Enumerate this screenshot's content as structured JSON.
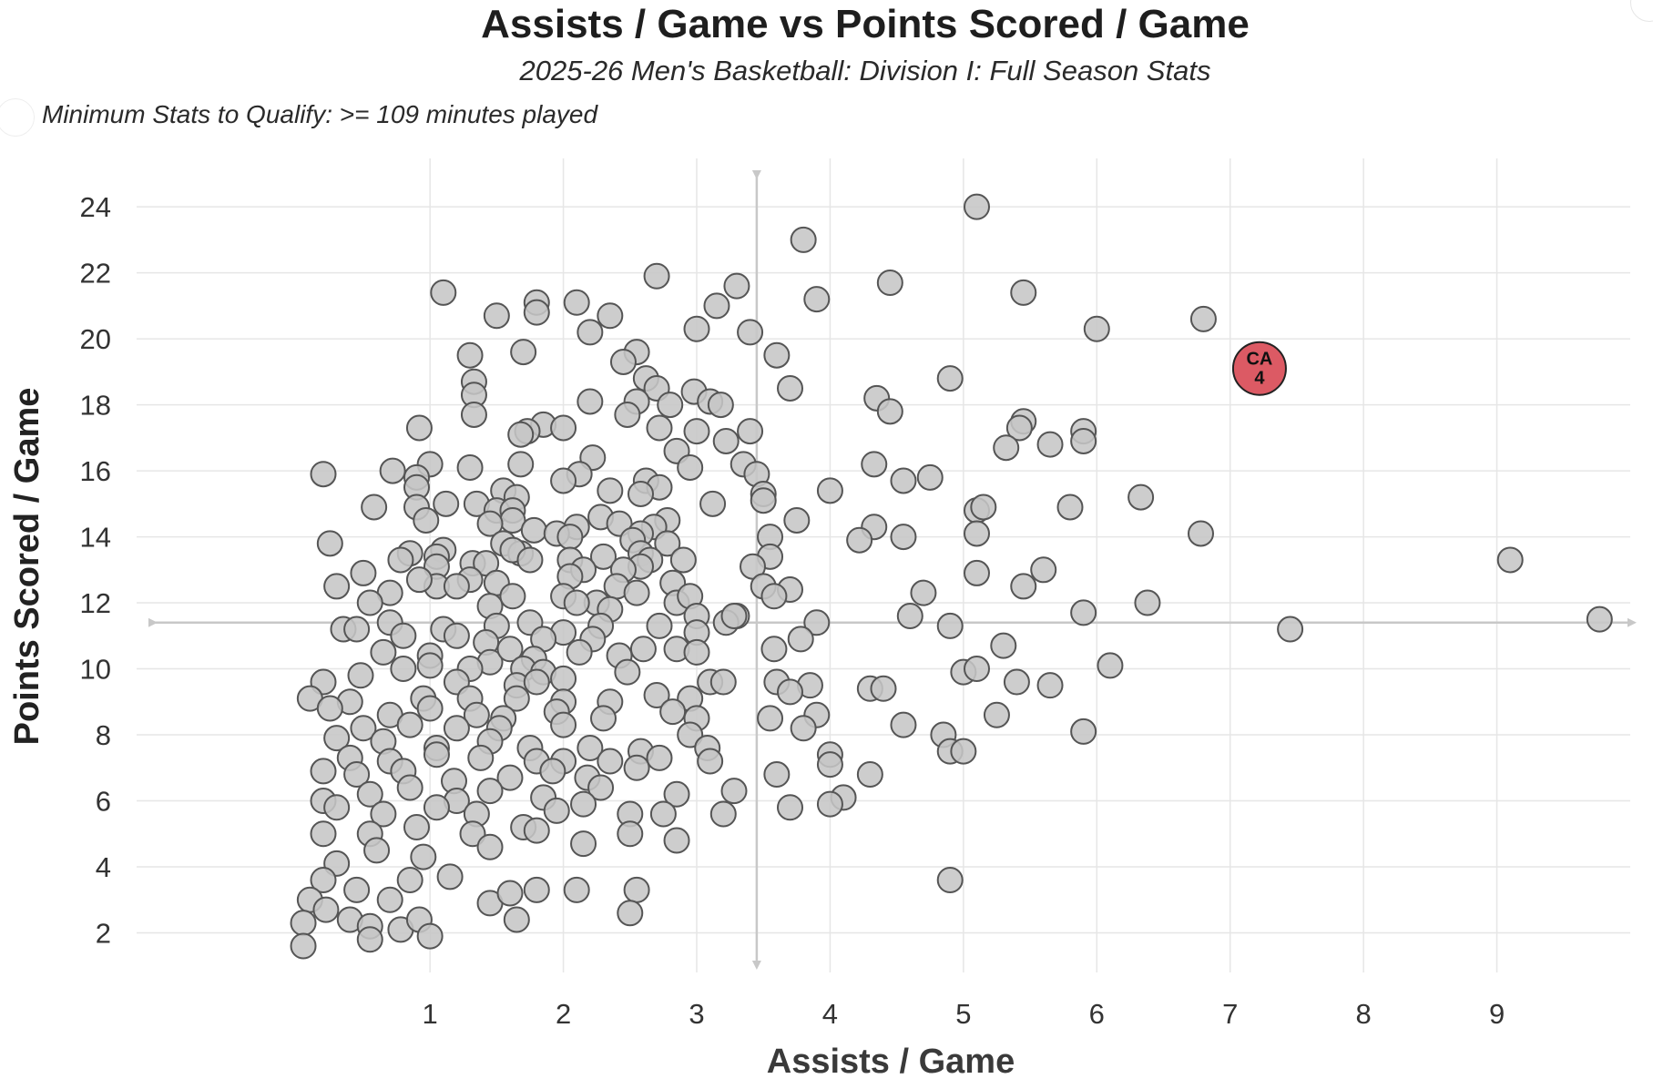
{
  "chart_data": {
    "type": "scatter",
    "title": "Assists / Game vs Points Scored / Game",
    "subtitle": "2025-26 Men's Basketball: Division I: Full Season Stats",
    "note": "Minimum Stats to Qualify: >= 109 minutes played",
    "xlabel": "Assists / Game",
    "ylabel": "Points Scored / Game",
    "xlim": [
      -1.2,
      10.0
    ],
    "ylim": [
      0.8,
      25.3
    ],
    "x_ticks": [
      1,
      2,
      3,
      4,
      5,
      6,
      7,
      8,
      9
    ],
    "y_ticks": [
      2,
      4,
      6,
      8,
      10,
      12,
      14,
      16,
      18,
      20,
      22,
      24
    ],
    "reference_lines": {
      "x_mean": 3.45,
      "y_mean": 11.4
    },
    "colors": {
      "point_fill": "#c6c6c6",
      "point_stroke": "#555555",
      "highlight_fill": "#dc5a64",
      "grid": "#e6e6e6",
      "reference": "#c8c8c8"
    },
    "highlight": {
      "label_line1": "CA",
      "label_line2": "4",
      "x": 7.22,
      "y": 19.1
    },
    "points": [
      [
        5.1,
        24.0
      ],
      [
        3.8,
        23.0
      ],
      [
        2.7,
        21.9
      ],
      [
        3.3,
        21.6
      ],
      [
        4.45,
        21.7
      ],
      [
        1.1,
        21.4
      ],
      [
        5.45,
        21.4
      ],
      [
        1.8,
        21.1
      ],
      [
        2.1,
        21.1
      ],
      [
        3.9,
        21.2
      ],
      [
        3.15,
        21.0
      ],
      [
        1.5,
        20.7
      ],
      [
        1.8,
        20.8
      ],
      [
        2.35,
        20.7
      ],
      [
        6.8,
        20.6
      ],
      [
        2.2,
        20.2
      ],
      [
        3.0,
        20.3
      ],
      [
        3.4,
        20.2
      ],
      [
        6.0,
        20.3
      ],
      [
        1.3,
        19.5
      ],
      [
        1.7,
        19.6
      ],
      [
        2.55,
        19.6
      ],
      [
        3.6,
        19.5
      ],
      [
        2.45,
        19.3
      ],
      [
        4.9,
        18.8
      ],
      [
        1.33,
        18.7
      ],
      [
        1.33,
        18.3
      ],
      [
        2.62,
        18.8
      ],
      [
        2.7,
        18.5
      ],
      [
        3.7,
        18.5
      ],
      [
        2.2,
        18.1
      ],
      [
        2.98,
        18.4
      ],
      [
        3.1,
        18.1
      ],
      [
        4.35,
        18.2
      ],
      [
        3.18,
        18.0
      ],
      [
        2.55,
        18.1
      ],
      [
        2.8,
        18.0
      ],
      [
        4.45,
        17.8
      ],
      [
        1.33,
        17.7
      ],
      [
        2.48,
        17.7
      ],
      [
        5.45,
        17.5
      ],
      [
        1.85,
        17.4
      ],
      [
        2.0,
        17.3
      ],
      [
        5.42,
        17.3
      ],
      [
        0.92,
        17.3
      ],
      [
        1.73,
        17.2
      ],
      [
        2.72,
        17.3
      ],
      [
        3.4,
        17.2
      ],
      [
        5.9,
        17.2
      ],
      [
        1.68,
        17.1
      ],
      [
        3.0,
        17.2
      ],
      [
        5.9,
        16.9
      ],
      [
        5.32,
        16.7
      ],
      [
        5.65,
        16.8
      ],
      [
        3.22,
        16.9
      ],
      [
        2.85,
        16.6
      ],
      [
        2.22,
        16.4
      ],
      [
        3.35,
        16.2
      ],
      [
        4.33,
        16.2
      ],
      [
        1.3,
        16.1
      ],
      [
        0.72,
        16.0
      ],
      [
        1.0,
        16.2
      ],
      [
        1.68,
        16.2
      ],
      [
        0.2,
        15.9
      ],
      [
        0.9,
        15.8
      ],
      [
        2.12,
        15.9
      ],
      [
        2.0,
        15.7
      ],
      [
        2.95,
        16.1
      ],
      [
        3.45,
        15.9
      ],
      [
        4.55,
        15.7
      ],
      [
        4.75,
        15.8
      ],
      [
        2.62,
        15.7
      ],
      [
        0.9,
        15.5
      ],
      [
        2.35,
        15.4
      ],
      [
        4.0,
        15.4
      ],
      [
        2.72,
        15.5
      ],
      [
        3.5,
        15.3
      ],
      [
        2.58,
        15.3
      ],
      [
        1.55,
        15.4
      ],
      [
        1.65,
        15.2
      ],
      [
        1.12,
        15.0
      ],
      [
        0.58,
        14.9
      ],
      [
        0.9,
        14.9
      ],
      [
        3.12,
        15.0
      ],
      [
        3.5,
        15.1
      ],
      [
        6.33,
        15.2
      ],
      [
        1.35,
        15.0
      ],
      [
        1.5,
        14.8
      ],
      [
        1.62,
        14.8
      ],
      [
        5.8,
        14.9
      ],
      [
        5.1,
        14.8
      ],
      [
        5.15,
        14.9
      ],
      [
        0.97,
        14.5
      ],
      [
        2.28,
        14.6
      ],
      [
        1.62,
        14.5
      ],
      [
        2.78,
        14.5
      ],
      [
        3.75,
        14.5
      ],
      [
        1.45,
        14.4
      ],
      [
        2.1,
        14.3
      ],
      [
        2.42,
        14.4
      ],
      [
        2.68,
        14.3
      ],
      [
        4.33,
        14.3
      ],
      [
        1.78,
        14.2
      ],
      [
        1.95,
        14.1
      ],
      [
        2.05,
        14.0
      ],
      [
        2.58,
        14.1
      ],
      [
        3.55,
        14.0
      ],
      [
        4.55,
        14.0
      ],
      [
        5.1,
        14.1
      ],
      [
        6.78,
        14.1
      ],
      [
        0.25,
        13.8
      ],
      [
        1.1,
        13.6
      ],
      [
        1.55,
        13.8
      ],
      [
        2.52,
        13.9
      ],
      [
        2.78,
        13.8
      ],
      [
        1.05,
        13.4
      ],
      [
        1.68,
        13.5
      ],
      [
        0.85,
        13.5
      ],
      [
        1.32,
        13.2
      ],
      [
        2.3,
        13.4
      ],
      [
        1.62,
        13.6
      ],
      [
        4.22,
        13.9
      ],
      [
        2.58,
        13.5
      ],
      [
        2.9,
        13.3
      ],
      [
        0.78,
        13.3
      ],
      [
        1.05,
        13.1
      ],
      [
        2.05,
        13.3
      ],
      [
        2.65,
        13.3
      ],
      [
        3.55,
        13.4
      ],
      [
        1.75,
        13.3
      ],
      [
        2.58,
        13.1
      ],
      [
        3.42,
        13.1
      ],
      [
        1.42,
        13.2
      ],
      [
        9.1,
        13.3
      ],
      [
        0.5,
        12.9
      ],
      [
        1.3,
        12.7
      ],
      [
        1.5,
        12.6
      ],
      [
        2.15,
        13.0
      ],
      [
        2.45,
        13.0
      ],
      [
        2.05,
        12.8
      ],
      [
        5.1,
        12.9
      ],
      [
        5.6,
        13.0
      ],
      [
        0.3,
        12.5
      ],
      [
        1.05,
        12.5
      ],
      [
        0.92,
        12.7
      ],
      [
        2.4,
        12.5
      ],
      [
        3.5,
        12.5
      ],
      [
        3.7,
        12.4
      ],
      [
        2.82,
        12.6
      ],
      [
        5.45,
        12.5
      ],
      [
        0.7,
        12.3
      ],
      [
        1.2,
        12.5
      ],
      [
        2.0,
        12.2
      ],
      [
        2.25,
        12.0
      ],
      [
        2.55,
        12.3
      ],
      [
        3.58,
        12.2
      ],
      [
        4.7,
        12.3
      ],
      [
        0.55,
        12.0
      ],
      [
        1.62,
        12.2
      ],
      [
        2.1,
        12.0
      ],
      [
        2.85,
        12.0
      ],
      [
        2.95,
        12.2
      ],
      [
        1.45,
        11.9
      ],
      [
        2.35,
        11.8
      ],
      [
        3.0,
        11.6
      ],
      [
        3.3,
        11.6
      ],
      [
        3.9,
        11.4
      ],
      [
        4.6,
        11.6
      ],
      [
        5.9,
        11.7
      ],
      [
        6.38,
        12.0
      ],
      [
        0.35,
        11.2
      ],
      [
        0.7,
        11.4
      ],
      [
        1.1,
        11.2
      ],
      [
        1.5,
        11.3
      ],
      [
        1.75,
        11.4
      ],
      [
        2.0,
        11.1
      ],
      [
        2.28,
        11.3
      ],
      [
        2.72,
        11.3
      ],
      [
        3.22,
        11.4
      ],
      [
        3.28,
        11.6
      ],
      [
        4.9,
        11.3
      ],
      [
        0.45,
        11.2
      ],
      [
        0.8,
        11.0
      ],
      [
        1.2,
        11.0
      ],
      [
        1.42,
        10.8
      ],
      [
        1.85,
        10.9
      ],
      [
        2.22,
        10.9
      ],
      [
        2.6,
        10.6
      ],
      [
        3.0,
        11.1
      ],
      [
        3.78,
        10.9
      ],
      [
        5.3,
        10.7
      ],
      [
        7.45,
        11.2
      ],
      [
        9.77,
        11.5
      ],
      [
        0.65,
        10.5
      ],
      [
        1.0,
        10.4
      ],
      [
        1.45,
        10.2
      ],
      [
        1.6,
        10.6
      ],
      [
        1.78,
        10.3
      ],
      [
        2.12,
        10.5
      ],
      [
        2.42,
        10.4
      ],
      [
        2.85,
        10.6
      ],
      [
        3.0,
        10.5
      ],
      [
        3.58,
        10.6
      ],
      [
        1.0,
        10.1
      ],
      [
        1.3,
        10.0
      ],
      [
        1.7,
        10.0
      ],
      [
        1.85,
        9.9
      ],
      [
        2.0,
        9.7
      ],
      [
        2.48,
        9.9
      ],
      [
        5.0,
        9.9
      ],
      [
        5.1,
        10.0
      ],
      [
        6.1,
        10.1
      ],
      [
        0.2,
        9.6
      ],
      [
        0.48,
        9.8
      ],
      [
        0.8,
        10.0
      ],
      [
        1.2,
        9.6
      ],
      [
        1.65,
        9.5
      ],
      [
        1.8,
        9.6
      ],
      [
        3.1,
        9.6
      ],
      [
        3.2,
        9.6
      ],
      [
        3.6,
        9.6
      ],
      [
        3.85,
        9.5
      ],
      [
        4.3,
        9.4
      ],
      [
        4.4,
        9.4
      ],
      [
        5.4,
        9.6
      ],
      [
        5.65,
        9.5
      ],
      [
        0.1,
        9.1
      ],
      [
        0.4,
        9.0
      ],
      [
        0.95,
        9.1
      ],
      [
        1.3,
        9.1
      ],
      [
        1.65,
        9.1
      ],
      [
        2.0,
        9.0
      ],
      [
        2.35,
        9.0
      ],
      [
        2.7,
        9.2
      ],
      [
        2.95,
        9.1
      ],
      [
        3.7,
        9.3
      ],
      [
        0.25,
        8.8
      ],
      [
        0.7,
        8.6
      ],
      [
        1.0,
        8.8
      ],
      [
        1.35,
        8.6
      ],
      [
        1.55,
        8.5
      ],
      [
        1.95,
        8.7
      ],
      [
        2.3,
        8.5
      ],
      [
        2.82,
        8.7
      ],
      [
        3.0,
        8.5
      ],
      [
        3.55,
        8.5
      ],
      [
        3.9,
        8.6
      ],
      [
        5.25,
        8.6
      ],
      [
        0.5,
        8.2
      ],
      [
        0.85,
        8.3
      ],
      [
        1.2,
        8.2
      ],
      [
        1.52,
        8.2
      ],
      [
        2.0,
        8.3
      ],
      [
        2.95,
        8.0
      ],
      [
        3.8,
        8.2
      ],
      [
        4.55,
        8.3
      ],
      [
        4.85,
        8.0
      ],
      [
        5.9,
        8.1
      ],
      [
        0.3,
        7.9
      ],
      [
        0.65,
        7.8
      ],
      [
        1.05,
        7.6
      ],
      [
        1.45,
        7.8
      ],
      [
        1.75,
        7.6
      ],
      [
        2.2,
        7.6
      ],
      [
        2.58,
        7.5
      ],
      [
        3.08,
        7.6
      ],
      [
        0.4,
        7.3
      ],
      [
        0.7,
        7.2
      ],
      [
        1.05,
        7.4
      ],
      [
        1.38,
        7.3
      ],
      [
        1.8,
        7.2
      ],
      [
        2.0,
        7.2
      ],
      [
        2.35,
        7.2
      ],
      [
        2.72,
        7.3
      ],
      [
        3.1,
        7.2
      ],
      [
        4.0,
        7.4
      ],
      [
        4.9,
        7.5
      ],
      [
        5.0,
        7.5
      ],
      [
        0.2,
        6.9
      ],
      [
        0.45,
        6.8
      ],
      [
        0.8,
        6.9
      ],
      [
        1.18,
        6.6
      ],
      [
        1.6,
        6.7
      ],
      [
        1.92,
        6.9
      ],
      [
        2.18,
        6.7
      ],
      [
        2.55,
        7.0
      ],
      [
        3.6,
        6.8
      ],
      [
        4.0,
        7.1
      ],
      [
        4.3,
        6.8
      ],
      [
        0.2,
        6.0
      ],
      [
        0.55,
        6.2
      ],
      [
        0.85,
        6.4
      ],
      [
        1.2,
        6.0
      ],
      [
        1.45,
        6.3
      ],
      [
        1.85,
        6.1
      ],
      [
        2.28,
        6.4
      ],
      [
        2.85,
        6.2
      ],
      [
        3.28,
        6.3
      ],
      [
        4.1,
        6.1
      ],
      [
        0.3,
        5.8
      ],
      [
        0.65,
        5.6
      ],
      [
        1.05,
        5.8
      ],
      [
        1.35,
        5.6
      ],
      [
        1.95,
        5.7
      ],
      [
        2.15,
        5.9
      ],
      [
        2.5,
        5.6
      ],
      [
        2.75,
        5.6
      ],
      [
        3.2,
        5.6
      ],
      [
        3.7,
        5.8
      ],
      [
        4.0,
        5.9
      ],
      [
        0.2,
        5.0
      ],
      [
        0.55,
        5.0
      ],
      [
        0.9,
        5.2
      ],
      [
        1.32,
        5.0
      ],
      [
        1.7,
        5.2
      ],
      [
        1.8,
        5.1
      ],
      [
        2.15,
        4.7
      ],
      [
        2.5,
        5.0
      ],
      [
        2.85,
        4.8
      ],
      [
        0.3,
        4.1
      ],
      [
        0.6,
        4.5
      ],
      [
        0.95,
        4.3
      ],
      [
        1.15,
        3.7
      ],
      [
        1.45,
        4.6
      ],
      [
        2.55,
        3.3
      ],
      [
        0.2,
        3.6
      ],
      [
        0.45,
        3.3
      ],
      [
        0.7,
        3.0
      ],
      [
        0.85,
        3.6
      ],
      [
        1.45,
        2.9
      ],
      [
        1.6,
        3.2
      ],
      [
        1.8,
        3.3
      ],
      [
        2.1,
        3.3
      ],
      [
        0.1,
        3.0
      ],
      [
        0.22,
        2.7
      ],
      [
        0.4,
        2.4
      ],
      [
        0.55,
        2.2
      ],
      [
        0.78,
        2.1
      ],
      [
        0.92,
        2.4
      ],
      [
        1.65,
        2.4
      ],
      [
        2.5,
        2.6
      ],
      [
        0.05,
        2.3
      ],
      [
        0.55,
        1.8
      ],
      [
        1.0,
        1.9
      ],
      [
        0.05,
        1.6
      ],
      [
        4.9,
        3.6
      ]
    ]
  }
}
